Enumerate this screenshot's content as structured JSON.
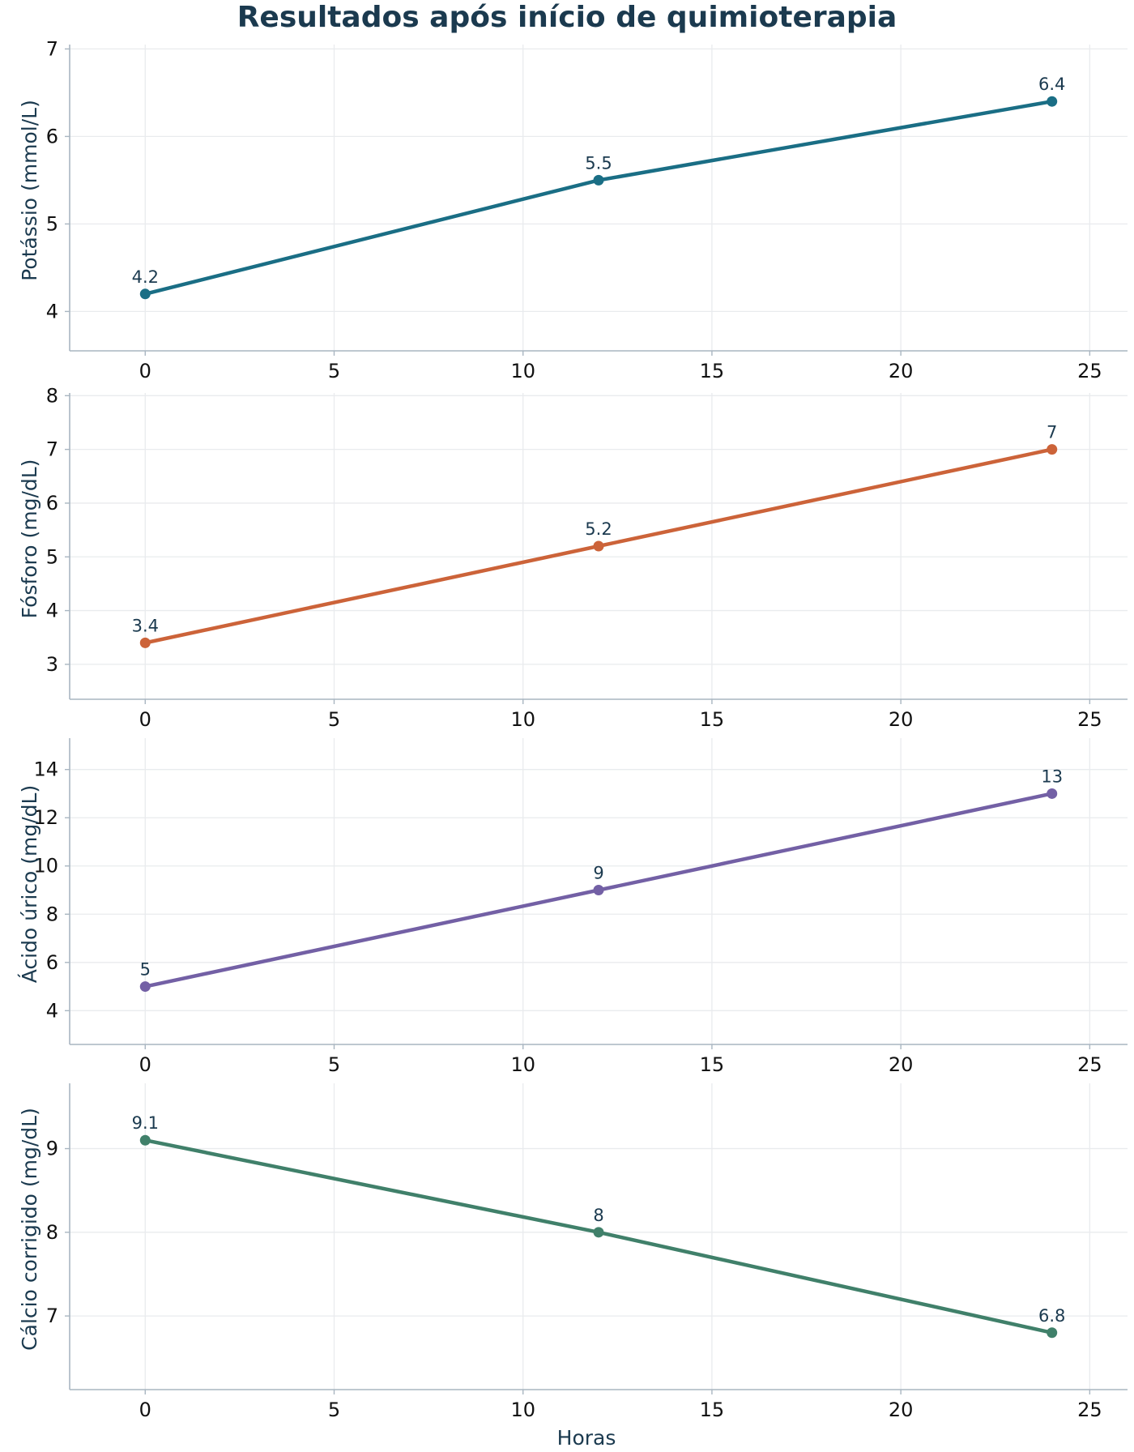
{
  "chart_data": {
    "type": "line",
    "title": "Resultados após início de quimioterapia",
    "xlabel": "Horas",
    "xlim": [
      -2,
      26
    ],
    "x_ticks": [
      0,
      5,
      10,
      15,
      20,
      25
    ],
    "grid": true,
    "panels": [
      {
        "ylabel": "Potássio (mmol/L)",
        "color": "#1a6e85",
        "ylim": [
          3.55,
          7.05
        ],
        "y_ticks": [
          4,
          5,
          6,
          7
        ],
        "x": [
          0,
          12,
          24
        ],
        "values": [
          4.2,
          5.5,
          6.4
        ],
        "labels": [
          "4.2",
          "5.5",
          "6.4"
        ]
      },
      {
        "ylabel": "Fósforo (mg/dL)",
        "color": "#cc6339",
        "ylim": [
          2.35,
          8.05
        ],
        "y_ticks": [
          3,
          4,
          5,
          6,
          7,
          8
        ],
        "x": [
          0,
          12,
          24
        ],
        "values": [
          3.4,
          5.2,
          7.0
        ],
        "labels": [
          "3.4",
          "5.2",
          "7"
        ]
      },
      {
        "ylabel": "Ácido úrico (mg/dL)",
        "color": "#7360a5",
        "ylim": [
          2.6,
          15.3
        ],
        "y_ticks": [
          4,
          6,
          8,
          10,
          12,
          14
        ],
        "x": [
          0,
          12,
          24
        ],
        "values": [
          5,
          9,
          13
        ],
        "labels": [
          "5",
          "9",
          "13"
        ]
      },
      {
        "ylabel": "Cálcio corrigido (mg/dL)",
        "color": "#40806a",
        "ylim": [
          6.12,
          9.78
        ],
        "y_ticks": [
          7,
          8,
          9
        ],
        "x": [
          0,
          12,
          24
        ],
        "values": [
          9.1,
          8.0,
          6.8
        ],
        "labels": [
          "9.1",
          "8",
          "6.8"
        ]
      }
    ]
  }
}
